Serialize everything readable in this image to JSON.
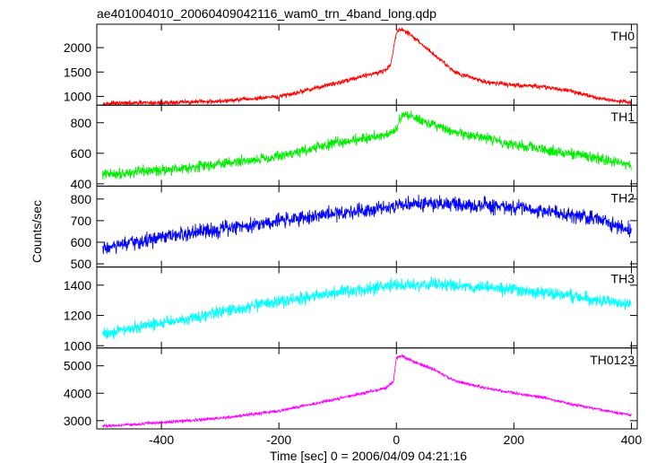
{
  "chart_data": {
    "type": "line",
    "title": "ae401004010_20060409042116_wam0_trn_4band_long.qdp",
    "xlabel": "Time [sec] 0 = 2006/04/09 04:21:16",
    "ylabel": "Counts/sec",
    "xlim": [
      -510,
      410
    ],
    "xticks": [
      -400,
      -200,
      0,
      200,
      400
    ],
    "grid": false,
    "panels": [
      {
        "name": "TH0",
        "color": "#ff0000",
        "ylim": [
          820,
          2480
        ],
        "yticks": [
          1000,
          1500,
          2000
        ],
        "noise": 40,
        "x": [
          -500,
          -400,
          -300,
          -200,
          -100,
          -50,
          -20,
          -10,
          0,
          5,
          20,
          40,
          60,
          100,
          150,
          200,
          250,
          300,
          350,
          400
        ],
        "y": [
          850,
          870,
          900,
          990,
          1280,
          1440,
          1520,
          1650,
          2300,
          2380,
          2300,
          2100,
          1900,
          1500,
          1300,
          1230,
          1200,
          1100,
          950,
          870
        ]
      },
      {
        "name": "TH1",
        "color": "#00ee00",
        "ylim": [
          385,
          915
        ],
        "yticks": [
          400,
          600,
          800
        ],
        "noise": 30,
        "x": [
          -500,
          -400,
          -300,
          -200,
          -100,
          -20,
          0,
          10,
          30,
          60,
          100,
          150,
          200,
          250,
          300,
          350,
          400
        ],
        "y": [
          460,
          490,
          530,
          580,
          670,
          720,
          760,
          850,
          840,
          790,
          730,
          700,
          660,
          620,
          600,
          560,
          520
        ]
      },
      {
        "name": "TH2",
        "color": "#0000ff",
        "ylim": [
          485,
          860
        ],
        "yticks": [
          500,
          600,
          700,
          800
        ],
        "noise": 30,
        "x": [
          -500,
          -450,
          -400,
          -300,
          -200,
          -100,
          0,
          50,
          100,
          200,
          300,
          350,
          380,
          400
        ],
        "y": [
          570,
          595,
          620,
          660,
          700,
          735,
          770,
          780,
          775,
          760,
          730,
          700,
          670,
          650
        ]
      },
      {
        "name": "TH3",
        "color": "#00ffff",
        "ylim": [
          985,
          1520
        ],
        "yticks": [
          1000,
          1200,
          1400
        ],
        "noise": 35,
        "x": [
          -500,
          -400,
          -300,
          -200,
          -100,
          0,
          50,
          100,
          200,
          300,
          350,
          400
        ],
        "y": [
          1080,
          1150,
          1220,
          1290,
          1350,
          1400,
          1405,
          1400,
          1370,
          1330,
          1300,
          1270
        ]
      },
      {
        "name": "TH0123",
        "color": "#ff00ff",
        "ylim": [
          2700,
          5650
        ],
        "yticks": [
          3000,
          4000,
          5000
        ],
        "noise": 45,
        "x": [
          -500,
          -400,
          -300,
          -200,
          -100,
          -20,
          -5,
          0,
          10,
          30,
          60,
          100,
          150,
          200,
          250,
          300,
          350,
          400
        ],
        "y": [
          2800,
          2930,
          3090,
          3350,
          3800,
          4180,
          4400,
          5300,
          5350,
          5150,
          4900,
          4450,
          4200,
          4000,
          3850,
          3600,
          3380,
          3200
        ]
      }
    ]
  }
}
